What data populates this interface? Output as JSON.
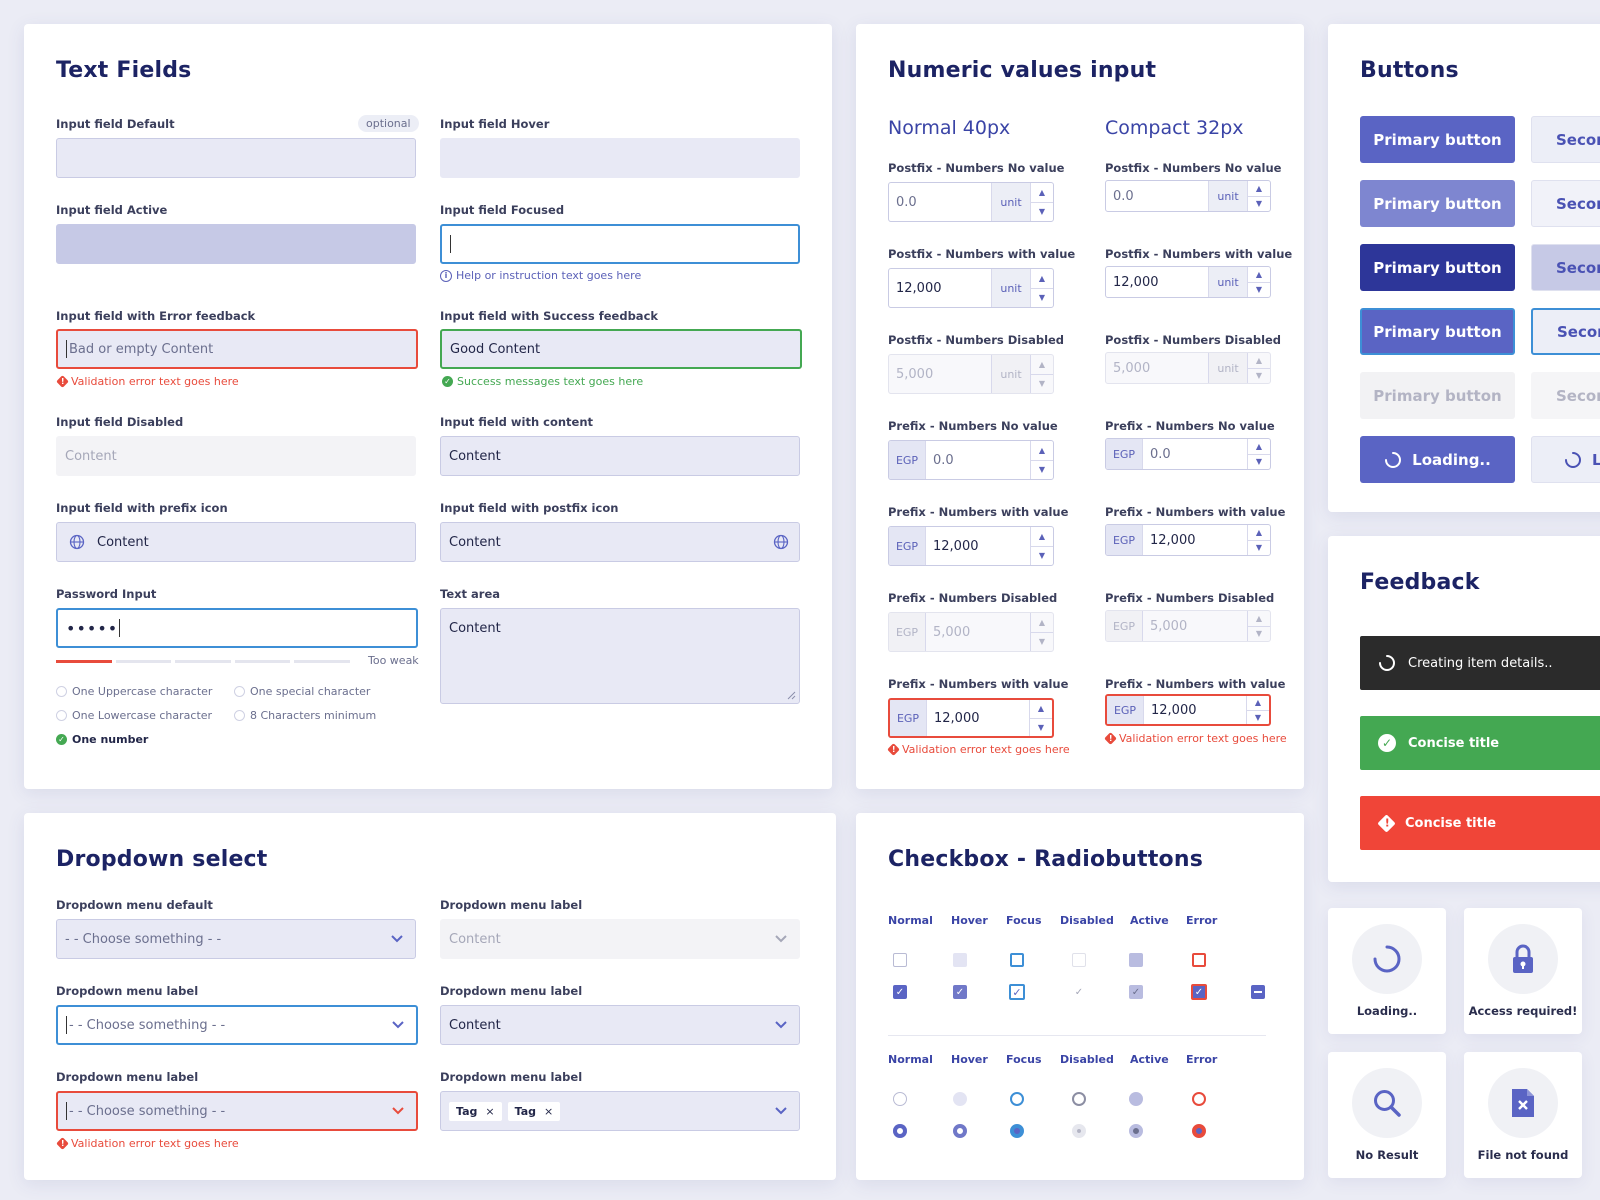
{
  "text_fields": {
    "title": "Text Fields",
    "default_label": "Input field Default",
    "optional": "optional",
    "hover_label": "Input field Hover",
    "active_label": "Input field Active",
    "focused_label": "Input field Focused",
    "focused_help": "Help or instruction text goes here",
    "error_label": "Input field with Error feedback",
    "error_value": "Bad or empty Content",
    "error_help": "Validation error text goes here",
    "success_label": "Input field with Success feedback",
    "success_value": "Good Content",
    "success_help": "Success messages text goes here",
    "disabled_label": "Input field Disabled",
    "disabled_value": "Content",
    "content_label": "Input field with content",
    "content_value": "Content",
    "prefix_label": "Input field with prefix icon",
    "prefix_value": "Content",
    "postfix_label": "Input field with postfix icon",
    "postfix_value": "Content",
    "password_label": "Password Input",
    "password_value": "•••••",
    "password_strength": "Too weak",
    "password_strength_level": 0.2,
    "rules": [
      "One Uppercase character",
      "One special character",
      "One Lowercase character",
      "8 Characters minimum",
      "One number"
    ],
    "textarea_label": "Text area",
    "textarea_value": "Content"
  },
  "numeric": {
    "title": "Numeric values input",
    "normal_heading": "Normal 40px",
    "compact_heading": "Compact 32px",
    "unit": "unit",
    "prefix": "EGP",
    "rows": [
      {
        "label": "Postfix - Numbers No value",
        "value": "0.0"
      },
      {
        "label": "Postfix - Numbers with value",
        "value": "12,000"
      },
      {
        "label": "Postfix - Numbers Disabled",
        "value": "5,000"
      },
      {
        "label": "Prefix - Numbers No value",
        "value": "0.0"
      },
      {
        "label": "Prefix - Numbers with value",
        "value": "12,000"
      },
      {
        "label": "Prefix - Numbers Disabled",
        "value": "5,000"
      },
      {
        "label": "Prefix - Numbers with value",
        "value": "12,000"
      }
    ],
    "error_help": "Validation error text goes here"
  },
  "buttons": {
    "title": "Buttons",
    "primary": "Primary button",
    "secondary": "Secon",
    "loading": "Loading..",
    "secondary_loading": "L"
  },
  "feedback": {
    "title": "Feedback",
    "loading_toast": "Creating item details..",
    "success_toast": "Concise title",
    "error_toast": "Concise title"
  },
  "states": {
    "loading": "Loading..",
    "access": "Access required!",
    "no_result": "No Result",
    "file_not_found": "File not found"
  },
  "dropdown": {
    "title": "Dropdown select",
    "default_label": "Dropdown menu default",
    "label": "Dropdown menu label",
    "placeholder": "- - Choose something - -",
    "disabled_value": "Content",
    "content_value": "Content",
    "error_help": "Validation error text goes here",
    "tags": [
      "Tag",
      "Tag"
    ]
  },
  "checks": {
    "title": "Checkbox - Radiobuttons",
    "columns": [
      "Normal",
      "Hover",
      "Focus",
      "Disabled",
      "Active",
      "Error"
    ]
  },
  "colors": {
    "primary": "#5a64c4",
    "primary_hover": "#7e86d0",
    "primary_active": "#2d3699",
    "error": "#e84b3c",
    "success": "#44a852",
    "focus": "#3d8fd6"
  }
}
